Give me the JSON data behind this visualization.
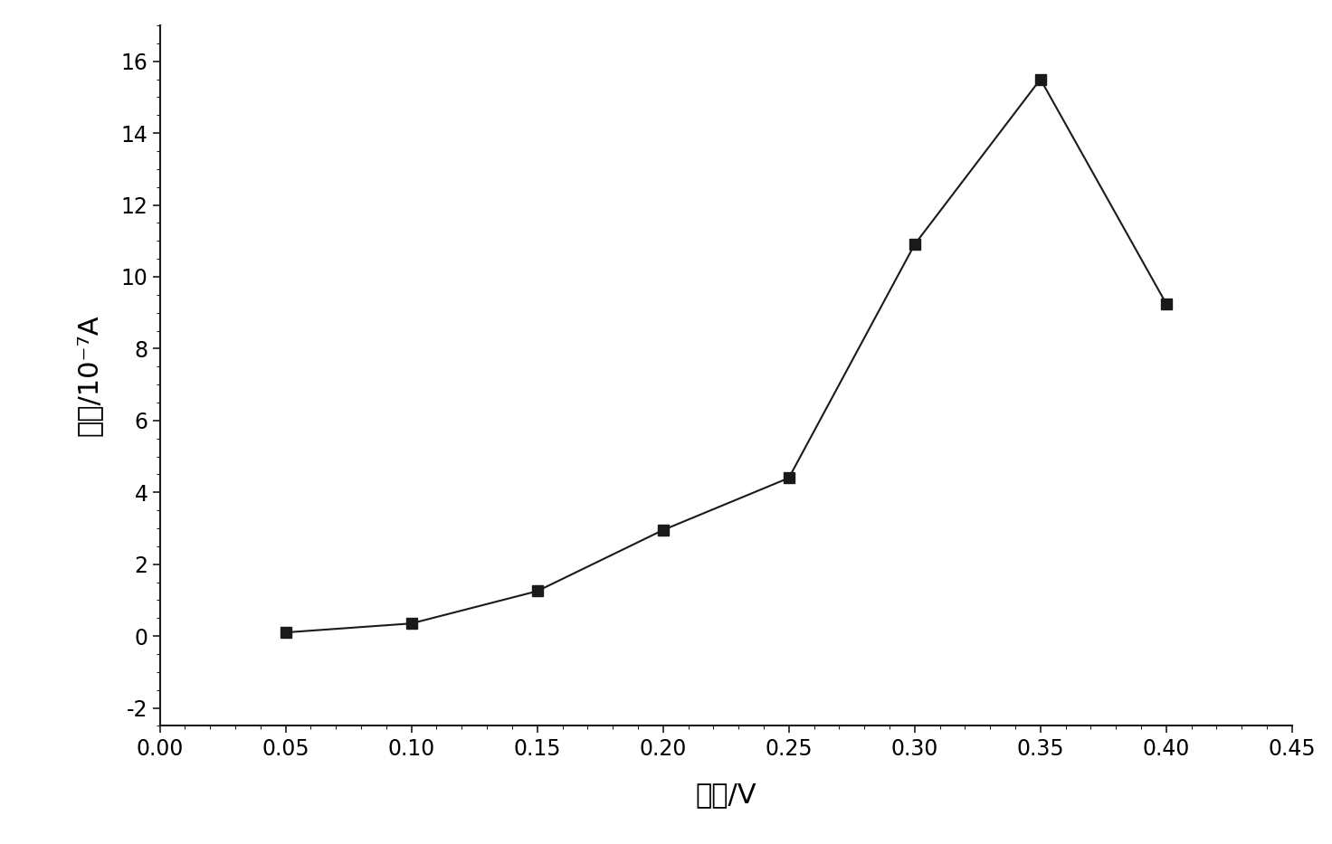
{
  "x": [
    0.05,
    0.1,
    0.15,
    0.2,
    0.25,
    0.3,
    0.35,
    0.4
  ],
  "y": [
    0.1,
    0.35,
    1.25,
    2.95,
    4.4,
    10.9,
    15.5,
    9.25
  ],
  "xlabel": "电位/V",
  "ylabel": "电流/10⁻⁷A",
  "xlim": [
    0.0,
    0.45
  ],
  "ylim": [
    -2.5,
    17
  ],
  "xticks": [
    0.0,
    0.05,
    0.1,
    0.15,
    0.2,
    0.25,
    0.3,
    0.35,
    0.4,
    0.45
  ],
  "yticks": [
    -2,
    0,
    2,
    4,
    6,
    8,
    10,
    12,
    14,
    16
  ],
  "line_color": "#1a1a1a",
  "marker": "s",
  "marker_size": 8,
  "marker_color": "#1a1a1a",
  "background_color": "#ffffff",
  "tick_label_fontsize": 17,
  "axis_label_fontsize": 22
}
